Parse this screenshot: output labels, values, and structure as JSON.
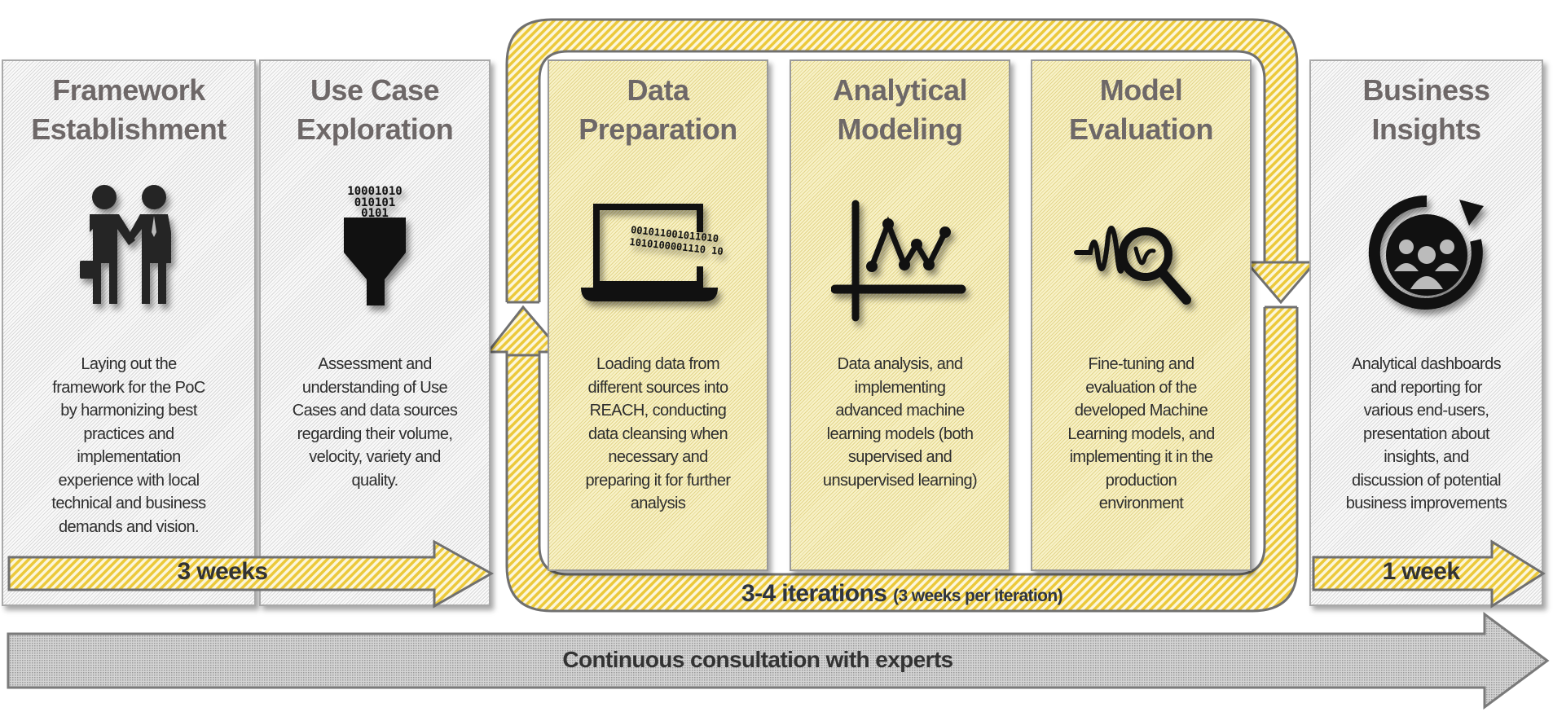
{
  "colors": {
    "accent_yellow": "#f0d040",
    "panel_yellow": "#f8f2c8",
    "panel_gray": "#efefef",
    "outline": "#707070",
    "title_gray": "#6e6868"
  },
  "phases": [
    {
      "title": "Framework\nEstablishment",
      "icon": "handshake-people-icon",
      "description": "Laying out the\nframework for the PoC\nby harmonizing best\npractices and\nimplementation\nexperience with local\ntechnical and business\ndemands and vision."
    },
    {
      "title": "Use Case\nExploration",
      "icon": "data-funnel-icon",
      "icon_text": [
        "10001010",
        "010101",
        "0101"
      ],
      "description": "Assessment and\nunderstanding of Use\nCases and data sources\nregarding their volume,\nvelocity, variety and\nquality."
    },
    {
      "title": "Data\nPreparation",
      "icon": "laptop-binary-icon",
      "icon_text": [
        "001011001011010",
        "1010100001110 10"
      ],
      "description": "Loading data from\ndifferent sources into\nREACH, conducting\ndata cleansing when\nnecessary and\npreparing it for further\nanalysis"
    },
    {
      "title": "Analytical\nModeling",
      "icon": "line-chart-icon",
      "description": "Data analysis, and\nimplementing\nadvanced machine\nlearning models (both\nsupervised and\nunsupervised learning)"
    },
    {
      "title": "Model\nEvaluation",
      "icon": "signal-magnifier-icon",
      "description": "Fine-tuning and\nevaluation of the\ndeveloped Machine\nLearning models, and\nimplementing it in the\nproduction\nenvironment"
    },
    {
      "title": "Business\nInsights",
      "icon": "team-cycle-icon",
      "description": "Analytical dashboards\nand reporting for\nvarious end-users,\npresentation about\ninsights, and\ndiscussion of potential\nbusiness improvements"
    }
  ],
  "durations": {
    "initial": "3 weeks",
    "final": "1 week"
  },
  "iterations": {
    "label": "3-4 iterations",
    "detail": "(3 weeks per iteration)"
  },
  "consultation": "Continuous consultation with experts"
}
